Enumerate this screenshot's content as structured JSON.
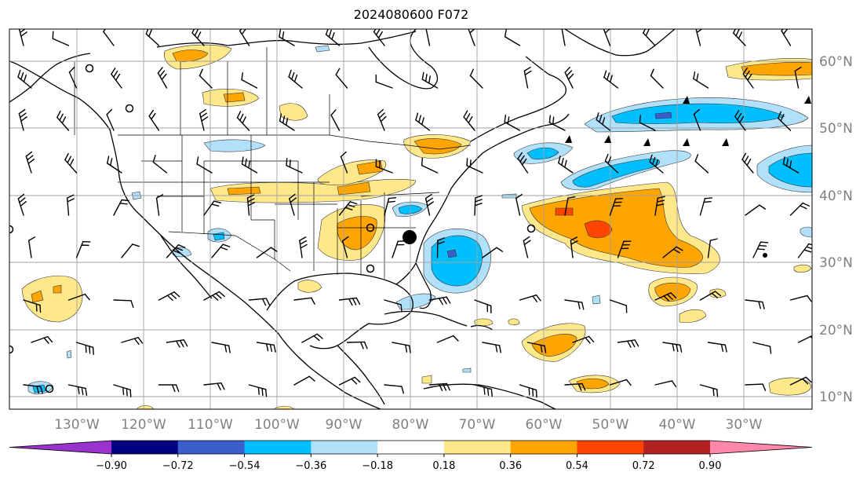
{
  "title": "2024080600 F072",
  "map": {
    "longitude_labels": [
      "130°W",
      "120°W",
      "110°W",
      "100°W",
      "90°W",
      "80°W",
      "70°W",
      "60°W",
      "50°W",
      "40°W",
      "30°W"
    ],
    "latitude_labels": [
      "60°N",
      "50°N",
      "40°N",
      "30°N",
      "20°N",
      "10°N"
    ],
    "gridlines": true
  },
  "colorbar": {
    "orientation": "horizontal",
    "extend": "both",
    "tick_labels": [
      "−0.90",
      "−0.72",
      "−0.54",
      "−0.36",
      "−0.18",
      "0.18",
      "0.36",
      "0.54",
      "0.72",
      "0.90"
    ],
    "colors": [
      "#9933cc",
      "#000080",
      "#3a5fcd",
      "#00bfff",
      "#b0e0fa",
      "#ffffff",
      "#ffe88a",
      "#ffa500",
      "#ff4500",
      "#b22222",
      "#ff88aa"
    ],
    "under_color": "#9933cc",
    "over_color": "#ff88aa"
  },
  "colors": {
    "coast": "#000000",
    "grid": "#a0a0a0",
    "barb": "#000000"
  }
}
